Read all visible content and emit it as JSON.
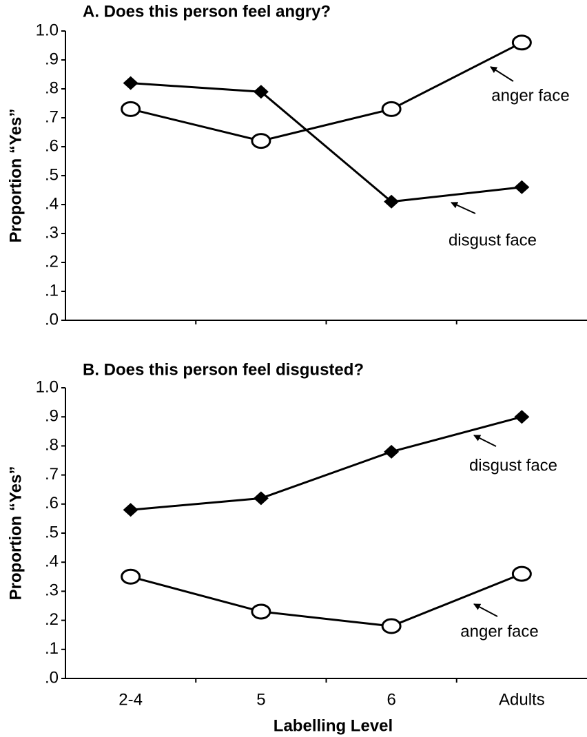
{
  "chart_data": [
    {
      "type": "line",
      "title": "A. Does this person feel angry?",
      "y_label": "Proportion “Yes”",
      "ylim": [
        0,
        1
      ],
      "yticks": [
        {
          "value": 0,
          "label": ".0"
        },
        {
          "value": 0.1,
          "label": ".1"
        },
        {
          "value": 0.2,
          "label": ".2"
        },
        {
          "value": 0.3,
          "label": ".3"
        },
        {
          "value": 0.4,
          "label": ".4"
        },
        {
          "value": 0.5,
          "label": ".5"
        },
        {
          "value": 0.6,
          "label": ".6"
        },
        {
          "value": 0.7,
          "label": ".7"
        },
        {
          "value": 0.8,
          "label": ".8"
        },
        {
          "value": 0.9,
          "label": ".9"
        },
        {
          "value": 1,
          "label": "1.0"
        }
      ],
      "series": [
        {
          "name": "disgust face",
          "color": "#000000",
          "marker": "diamond",
          "values": [
            0.82,
            0.79,
            0.41,
            0.46
          ]
        },
        {
          "name": "anger face",
          "color": "#000000",
          "marker": "circle",
          "values": [
            0.73,
            0.62,
            0.73,
            0.96
          ]
        }
      ]
    },
    {
      "type": "line",
      "title": "B. Does this person feel disgusted?",
      "y_label": "Proportion “Yes”",
      "x_label": "Labelling Level",
      "categories": [
        "2-4",
        "5",
        "6",
        "Adults"
      ],
      "ylim": [
        0,
        1
      ],
      "yticks": [
        {
          "value": 0,
          "label": ".0"
        },
        {
          "value": 0.1,
          "label": ".1"
        },
        {
          "value": 0.2,
          "label": ".2"
        },
        {
          "value": 0.3,
          "label": ".3"
        },
        {
          "value": 0.4,
          "label": ".4"
        },
        {
          "value": 0.5,
          "label": ".5"
        },
        {
          "value": 0.6,
          "label": ".6"
        },
        {
          "value": 0.7,
          "label": ".7"
        },
        {
          "value": 0.8,
          "label": ".8"
        },
        {
          "value": 0.9,
          "label": ".9"
        },
        {
          "value": 1,
          "label": "1.0"
        }
      ],
      "series": [
        {
          "name": "disgust face",
          "color": "#000000",
          "marker": "diamond",
          "values": [
            0.58,
            0.62,
            0.78,
            0.9
          ]
        },
        {
          "name": "anger face",
          "color": "#000000",
          "marker": "circle",
          "values": [
            0.35,
            0.23,
            0.18,
            0.36
          ]
        }
      ]
    }
  ]
}
